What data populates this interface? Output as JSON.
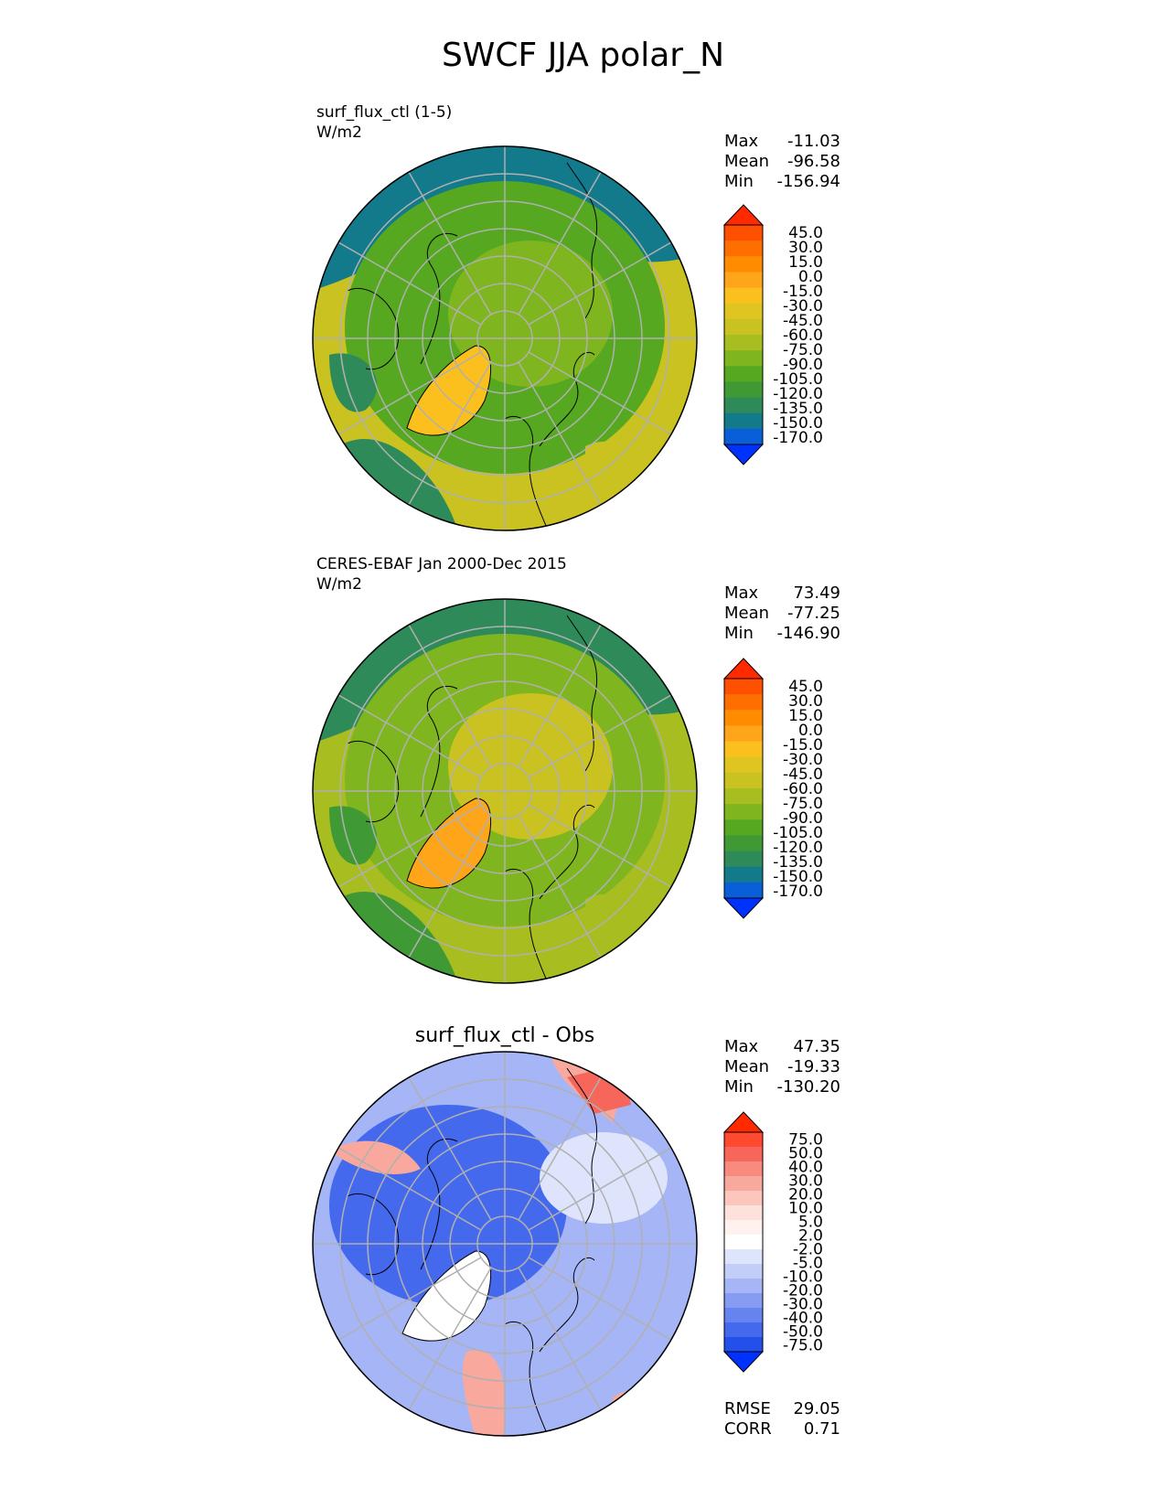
{
  "title": "SWCF JJA polar_N",
  "panels": [
    {
      "label_line1": "surf_flux_ctl (1-5)",
      "label_line2": "W/m2",
      "stats": {
        "max_label": "Max",
        "max": "-11.03",
        "mean_label": "Mean",
        "mean": "-96.58",
        "min_label": "Min",
        "min": "-156.94"
      },
      "colorbar": {
        "ticks": [
          "45.0",
          "30.0",
          "15.0",
          "0.0",
          "-15.0",
          "-30.0",
          "-45.0",
          "-60.0",
          "-75.0",
          "-90.0",
          "-105.0",
          "-120.0",
          "-135.0",
          "-150.0",
          "-170.0"
        ],
        "colors": [
          "#ff2a00",
          "#ff4f00",
          "#ff6f00",
          "#ff8c00",
          "#ffa51a",
          "#fcc01e",
          "#e0c41f",
          "#c9c220",
          "#a8bd1f",
          "#7fb51f",
          "#55a820",
          "#3f9a36",
          "#2f8a5a",
          "#137a8c",
          "#0a5fd8",
          "#0032ff"
        ]
      },
      "field_colors": {
        "ocean_outer": "#c9c220",
        "mid": "#55a820",
        "inner": "#7fb51f",
        "dark": "#2f8a5a",
        "cap": "#137a8c",
        "greenland": "#fcc01e"
      }
    },
    {
      "label_line1": "CERES-EBAF Jan 2000-Dec 2015",
      "label_line2": "W/m2",
      "stats": {
        "max_label": "Max",
        "max": "73.49",
        "mean_label": "Mean",
        "mean": "-77.25",
        "min_label": "Min",
        "min": "-146.90"
      },
      "colorbar": {
        "ticks": [
          "45.0",
          "30.0",
          "15.0",
          "0.0",
          "-15.0",
          "-30.0",
          "-45.0",
          "-60.0",
          "-75.0",
          "-90.0",
          "-105.0",
          "-120.0",
          "-135.0",
          "-150.0",
          "-170.0"
        ],
        "colors": [
          "#ff2a00",
          "#ff4f00",
          "#ff6f00",
          "#ff8c00",
          "#ffa51a",
          "#fcc01e",
          "#e0c41f",
          "#c9c220",
          "#a8bd1f",
          "#7fb51f",
          "#55a820",
          "#3f9a36",
          "#2f8a5a",
          "#137a8c",
          "#0a5fd8",
          "#0032ff"
        ]
      },
      "field_colors": {
        "ocean_outer": "#a8bd1f",
        "mid": "#7fb51f",
        "inner": "#c9c220",
        "dark": "#3f9a36",
        "cap": "#2f8a5a",
        "greenland": "#ffa51a"
      }
    },
    {
      "title": "surf_flux_ctl - Obs",
      "stats": {
        "max_label": "Max",
        "max": "47.35",
        "mean_label": "Mean",
        "mean": "-19.33",
        "min_label": "Min",
        "min": "-130.20"
      },
      "colorbar": {
        "ticks": [
          "75.0",
          "50.0",
          "40.0",
          "30.0",
          "20.0",
          "10.0",
          "5.0",
          "2.0",
          "-2.0",
          "-5.0",
          "-10.0",
          "-20.0",
          "-30.0",
          "-40.0",
          "-50.0",
          "-75.0"
        ],
        "colors": [
          "#ff2a00",
          "#ff4a2f",
          "#f7665a",
          "#f88a7e",
          "#f9a89e",
          "#fcc6bd",
          "#fde2dc",
          "#fff2ee",
          "#ffffff",
          "#dde4fb",
          "#c2cdf8",
          "#a5b5f5",
          "#859cf2",
          "#6684ef",
          "#4569ec",
          "#2350ea",
          "#0032ff"
        ]
      },
      "field_colors": {
        "base": "#a5b5f5",
        "deep": "#4569ec",
        "light": "#dde4fb",
        "warm": "#f9a89e",
        "hot": "#f7665a",
        "greenland": "#ffffff"
      }
    }
  ],
  "diff_metrics": {
    "rmse_label": "RMSE",
    "rmse": "29.05",
    "corr_label": "CORR",
    "corr": "0.71"
  }
}
